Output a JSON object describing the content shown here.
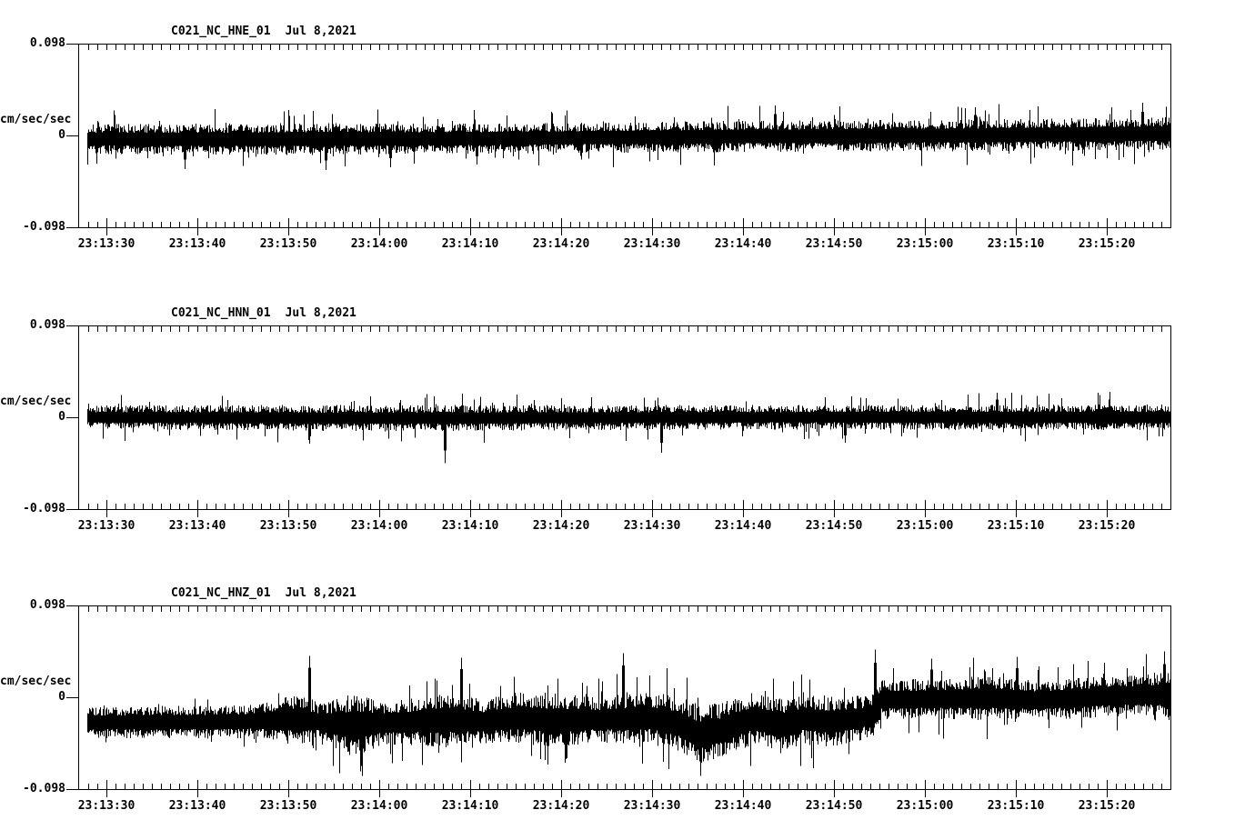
{
  "colors": {
    "background": "#ffffff",
    "trace": "#000000",
    "axis": "#000000",
    "text": "#000000"
  },
  "chart_data": [
    {
      "type": "line",
      "station_channel": "C021_NC_HNE_01",
      "date": "Jul 8,2021",
      "ylabel": "cm/sec/sec",
      "ylim": [
        -0.098,
        0.098
      ],
      "y_tick_labels": [
        "0.098",
        "0",
        "-0.098"
      ],
      "x_start": "23:13:27",
      "x_end": "23:15:27",
      "x_major_tick_seconds": 10,
      "x_minor_tick_seconds": 1,
      "x_major_tick_labels": [
        "23:13:30",
        "23:13:40",
        "23:13:50",
        "23:14:00",
        "23:14:10",
        "23:14:20",
        "23:14:30",
        "23:14:40",
        "23:14:50",
        "23:15:00",
        "23:15:10",
        "23:15:20"
      ],
      "units": "cm/sec/sec; envelope t = fraction of 120 s window",
      "signal_envelope": [
        {
          "t": 0.0,
          "mean": -0.004,
          "amp": 0.016
        },
        {
          "t": 0.2,
          "mean": -0.004,
          "amp": 0.017
        },
        {
          "t": 0.4,
          "mean": -0.003,
          "amp": 0.016
        },
        {
          "t": 0.6,
          "mean": -0.001,
          "amp": 0.017
        },
        {
          "t": 0.8,
          "mean": 0.0,
          "amp": 0.017
        },
        {
          "t": 1.0,
          "mean": 0.002,
          "amp": 0.018
        }
      ],
      "spikes": [
        {
          "t": 0.09,
          "value": -0.036
        },
        {
          "t": 0.22,
          "value": -0.037
        },
        {
          "t": 0.28,
          "value": -0.034
        },
        {
          "t": 0.36,
          "value": -0.031
        },
        {
          "t": 0.635,
          "value": 0.032
        },
        {
          "t": 0.82,
          "value": 0.03
        },
        {
          "t": 0.975,
          "value": 0.035
        }
      ]
    },
    {
      "type": "line",
      "station_channel": "C021_NC_HNN_01",
      "date": "Jul 8,2021",
      "ylabel": "cm/sec/sec",
      "ylim": [
        -0.098,
        0.098
      ],
      "y_tick_labels": [
        "0.098",
        "0",
        "-0.098"
      ],
      "x_start": "23:13:27",
      "x_end": "23:15:27",
      "x_major_tick_seconds": 10,
      "x_minor_tick_seconds": 1,
      "x_major_tick_labels": [
        "23:13:30",
        "23:13:40",
        "23:13:50",
        "23:14:00",
        "23:14:10",
        "23:14:20",
        "23:14:30",
        "23:14:40",
        "23:14:50",
        "23:15:00",
        "23:15:10",
        "23:15:20"
      ],
      "units": "cm/sec/sec; envelope t = fraction of 120 s window",
      "signal_envelope": [
        {
          "t": 0.0,
          "mean": 0.0,
          "amp": 0.013
        },
        {
          "t": 0.3,
          "mean": -0.001,
          "amp": 0.014
        },
        {
          "t": 0.6,
          "mean": 0.0,
          "amp": 0.013
        },
        {
          "t": 1.0,
          "mean": 0.0,
          "amp": 0.014
        }
      ],
      "spikes": [
        {
          "t": 0.205,
          "value": -0.028
        },
        {
          "t": 0.33,
          "value": -0.049
        },
        {
          "t": 0.53,
          "value": -0.038
        },
        {
          "t": 0.7,
          "value": -0.027
        },
        {
          "t": 0.84,
          "value": 0.026
        }
      ]
    },
    {
      "type": "line",
      "station_channel": "C021_NC_HNZ_01",
      "date": "Jul 8,2021",
      "ylabel": "cm/sec/sec",
      "ylim": [
        -0.098,
        0.098
      ],
      "y_tick_labels": [
        "0.098",
        "0",
        "-0.098"
      ],
      "x_start": "23:13:27",
      "x_end": "23:15:27",
      "x_major_tick_seconds": 10,
      "x_minor_tick_seconds": 1,
      "x_major_tick_labels": [
        "23:13:30",
        "23:13:40",
        "23:13:50",
        "23:14:00",
        "23:14:10",
        "23:14:20",
        "23:14:30",
        "23:14:40",
        "23:14:50",
        "23:15:00",
        "23:15:10",
        "23:15:20"
      ],
      "units": "cm/sec/sec; envelope t = fraction of 120 s window",
      "signal_envelope": [
        {
          "t": 0.0,
          "mean": -0.027,
          "amp": 0.017
        },
        {
          "t": 0.15,
          "mean": -0.026,
          "amp": 0.018
        },
        {
          "t": 0.195,
          "mean": -0.024,
          "amp": 0.028
        },
        {
          "t": 0.215,
          "mean": -0.026,
          "amp": 0.02
        },
        {
          "t": 0.245,
          "mean": -0.03,
          "amp": 0.034
        },
        {
          "t": 0.275,
          "mean": -0.028,
          "amp": 0.022
        },
        {
          "t": 0.33,
          "mean": -0.024,
          "amp": 0.03
        },
        {
          "t": 0.365,
          "mean": -0.026,
          "amp": 0.024
        },
        {
          "t": 0.4,
          "mean": -0.022,
          "amp": 0.028
        },
        {
          "t": 0.43,
          "mean": -0.025,
          "amp": 0.03
        },
        {
          "t": 0.47,
          "mean": -0.024,
          "amp": 0.024
        },
        {
          "t": 0.52,
          "mean": -0.022,
          "amp": 0.028
        },
        {
          "t": 0.545,
          "mean": -0.028,
          "amp": 0.03
        },
        {
          "t": 0.565,
          "mean": -0.04,
          "amp": 0.032
        },
        {
          "t": 0.59,
          "mean": -0.034,
          "amp": 0.03
        },
        {
          "t": 0.615,
          "mean": -0.022,
          "amp": 0.028
        },
        {
          "t": 0.64,
          "mean": -0.03,
          "amp": 0.03
        },
        {
          "t": 0.66,
          "mean": -0.024,
          "amp": 0.026
        },
        {
          "t": 0.69,
          "mean": -0.026,
          "amp": 0.028
        },
        {
          "t": 0.715,
          "mean": -0.022,
          "amp": 0.024
        },
        {
          "t": 0.727,
          "mean": -0.02,
          "amp": 0.024
        },
        {
          "t": 0.732,
          "mean": -0.003,
          "amp": 0.021
        },
        {
          "t": 0.78,
          "mean": -0.002,
          "amp": 0.022
        },
        {
          "t": 0.83,
          "mean": -0.001,
          "amp": 0.024
        },
        {
          "t": 0.88,
          "mean": -0.003,
          "amp": 0.022
        },
        {
          "t": 0.93,
          "mean": 0.0,
          "amp": 0.022
        },
        {
          "t": 0.97,
          "mean": 0.002,
          "amp": 0.022
        },
        {
          "t": 1.0,
          "mean": 0.003,
          "amp": 0.026
        }
      ],
      "spikes": [
        {
          "t": 0.205,
          "value": 0.044
        },
        {
          "t": 0.252,
          "value": -0.079
        },
        {
          "t": 0.345,
          "value": 0.042
        },
        {
          "t": 0.425,
          "value": -0.072
        },
        {
          "t": 0.495,
          "value": 0.047
        },
        {
          "t": 0.566,
          "value": -0.084
        },
        {
          "t": 0.728,
          "value": 0.051
        },
        {
          "t": 0.78,
          "value": 0.041
        },
        {
          "t": 0.859,
          "value": 0.043
        },
        {
          "t": 0.995,
          "value": 0.049
        }
      ]
    }
  ]
}
